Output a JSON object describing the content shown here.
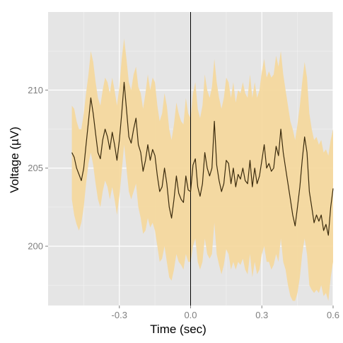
{
  "chart_data": {
    "type": "line",
    "title": "",
    "xlabel": "Time (sec)",
    "ylabel": "Voltage (µV)",
    "xlim": [
      -0.6,
      0.6
    ],
    "ylim": [
      196.2,
      215.0
    ],
    "x_ticks": [
      -0.3,
      0.0,
      0.3,
      0.6
    ],
    "x_tick_labels": [
      "-0.3",
      "0.0",
      "0.3",
      "0.6"
    ],
    "y_ticks": [
      200,
      205,
      210
    ],
    "y_tick_labels": [
      "200",
      "205",
      "210"
    ],
    "grid": true,
    "legend": "none",
    "vertical_reference_line_x": 0.0,
    "colors": {
      "panel_background": "#e5e5e5",
      "grid_major": "#ffffff",
      "grid_minor": "#f2f2f2",
      "line": "#3a2a0c",
      "band": "#f5d79a",
      "reference_line": "#000000"
    },
    "series": [
      {
        "x": [
          -0.5,
          -0.49,
          -0.48,
          -0.47,
          -0.46,
          -0.45,
          -0.44,
          -0.43,
          -0.42,
          -0.41,
          -0.4,
          -0.39,
          -0.38,
          -0.37,
          -0.36,
          -0.35,
          -0.34,
          -0.33,
          -0.32,
          -0.31,
          -0.3,
          -0.29,
          -0.28,
          -0.27,
          -0.26,
          -0.25,
          -0.24,
          -0.23,
          -0.22,
          -0.21,
          -0.2,
          -0.19,
          -0.18,
          -0.17,
          -0.16,
          -0.15,
          -0.14,
          -0.13,
          -0.12,
          -0.11,
          -0.1,
          -0.09,
          -0.08,
          -0.07,
          -0.06,
          -0.05,
          -0.04,
          -0.03,
          -0.02,
          -0.01,
          0.0,
          0.01,
          0.02,
          0.03,
          0.04,
          0.05,
          0.06,
          0.07,
          0.08,
          0.09,
          0.1,
          0.11,
          0.12,
          0.13,
          0.14,
          0.15,
          0.16,
          0.17,
          0.18,
          0.19,
          0.2,
          0.21,
          0.22,
          0.23,
          0.24,
          0.25,
          0.26,
          0.27,
          0.28,
          0.29,
          0.3,
          0.31,
          0.32,
          0.33,
          0.34,
          0.35,
          0.36,
          0.37,
          0.38,
          0.39,
          0.4,
          0.41,
          0.42,
          0.43,
          0.44,
          0.45,
          0.46,
          0.47,
          0.48,
          0.49,
          0.5,
          0.51,
          0.52,
          0.53,
          0.54,
          0.55,
          0.56,
          0.57,
          0.58,
          0.59,
          0.6
        ],
        "mean": [
          206.0,
          205.7,
          205.0,
          204.6,
          204.2,
          205.0,
          206.5,
          208.0,
          209.5,
          208.5,
          207.2,
          206.0,
          205.6,
          206.8,
          207.5,
          207.0,
          206.2,
          207.3,
          206.5,
          205.5,
          206.8,
          208.5,
          210.5,
          208.8,
          207.0,
          206.6,
          207.5,
          208.2,
          206.5,
          206.0,
          204.8,
          205.5,
          206.5,
          205.5,
          206.2,
          205.8,
          204.5,
          203.5,
          203.8,
          205.0,
          204.0,
          202.5,
          201.8,
          203.0,
          204.5,
          203.4,
          203.0,
          202.8,
          204.5,
          203.6,
          203.5,
          205.2,
          205.6,
          203.8,
          203.2,
          204.0,
          206.0,
          205.0,
          204.5,
          205.0,
          208.0,
          205.2,
          204.2,
          203.5,
          204.0,
          205.5,
          205.3,
          204.0,
          205.0,
          203.8,
          204.6,
          204.3,
          205.0,
          204.2,
          204.0,
          205.5,
          203.8,
          205.0,
          204.0,
          204.5,
          205.5,
          206.5,
          205.0,
          205.3,
          204.8,
          205.0,
          206.4,
          205.8,
          207.5,
          206.0,
          205.0,
          204.0,
          203.0,
          202.0,
          201.3,
          202.5,
          203.8,
          205.5,
          207.0,
          206.0,
          203.5,
          202.5,
          201.5,
          202.0,
          201.6,
          202.0,
          201.0,
          201.4,
          200.7,
          202.5,
          203.7
        ],
        "lower": [
          203.0,
          202.0,
          201.4,
          201.0,
          201.5,
          202.5,
          204.0,
          205.3,
          206.0,
          205.2,
          204.0,
          203.0,
          202.5,
          203.5,
          204.2,
          203.8,
          203.0,
          203.8,
          203.0,
          202.0,
          203.2,
          204.8,
          206.5,
          205.0,
          203.5,
          203.0,
          203.5,
          204.0,
          202.5,
          201.8,
          200.8,
          201.0,
          201.8,
          201.2,
          201.5,
          201.0,
          200.0,
          199.0,
          199.2,
          200.0,
          199.0,
          198.0,
          197.8,
          198.5,
          199.5,
          199.0,
          198.8,
          198.5,
          199.5,
          199.0,
          199.0,
          200.0,
          200.5,
          199.0,
          198.5,
          199.0,
          200.5,
          199.5,
          199.2,
          199.5,
          201.5,
          199.5,
          198.8,
          198.2,
          198.8,
          199.8,
          199.5,
          198.5,
          199.0,
          198.5,
          199.0,
          198.8,
          199.2,
          198.5,
          198.2,
          199.5,
          198.0,
          199.0,
          198.2,
          198.5,
          199.5,
          200.0,
          199.0,
          199.0,
          198.5,
          198.8,
          199.5,
          199.0,
          200.5,
          199.0,
          198.5,
          197.5,
          196.8,
          196.5,
          196.5,
          197.0,
          198.0,
          199.5,
          200.5,
          199.5,
          197.5,
          197.2,
          197.0,
          197.2,
          197.0,
          197.5,
          196.8,
          197.0,
          196.5,
          198.0,
          199.0
        ],
        "upper": [
          209.0,
          208.8,
          208.0,
          207.5,
          207.5,
          208.5,
          209.8,
          211.0,
          212.5,
          211.8,
          210.5,
          209.5,
          209.0,
          210.0,
          210.8,
          210.5,
          209.8,
          210.8,
          210.0,
          209.0,
          210.2,
          212.0,
          213.3,
          212.0,
          210.5,
          210.0,
          211.0,
          211.5,
          210.2,
          209.8,
          208.8,
          209.8,
          211.0,
          210.0,
          210.8,
          210.5,
          209.0,
          208.0,
          208.5,
          209.8,
          209.0,
          207.5,
          206.8,
          207.8,
          209.2,
          208.5,
          208.0,
          207.8,
          209.5,
          208.5,
          208.2,
          209.8,
          210.5,
          208.8,
          208.2,
          209.0,
          211.0,
          210.0,
          209.5,
          210.2,
          212.0,
          210.5,
          209.5,
          208.8,
          209.5,
          210.8,
          210.5,
          209.5,
          210.5,
          209.2,
          210.0,
          209.8,
          210.5,
          209.8,
          209.5,
          211.0,
          209.5,
          210.5,
          209.5,
          210.0,
          211.2,
          212.0,
          210.8,
          211.2,
          210.8,
          211.0,
          212.2,
          211.5,
          212.5,
          211.0,
          210.0,
          209.0,
          208.0,
          207.5,
          206.8,
          207.8,
          209.0,
          210.5,
          211.8,
          210.8,
          208.5,
          207.5,
          206.8,
          207.0,
          206.5,
          206.8,
          206.0,
          206.2,
          205.8,
          206.8,
          207.5
        ]
      }
    ]
  }
}
